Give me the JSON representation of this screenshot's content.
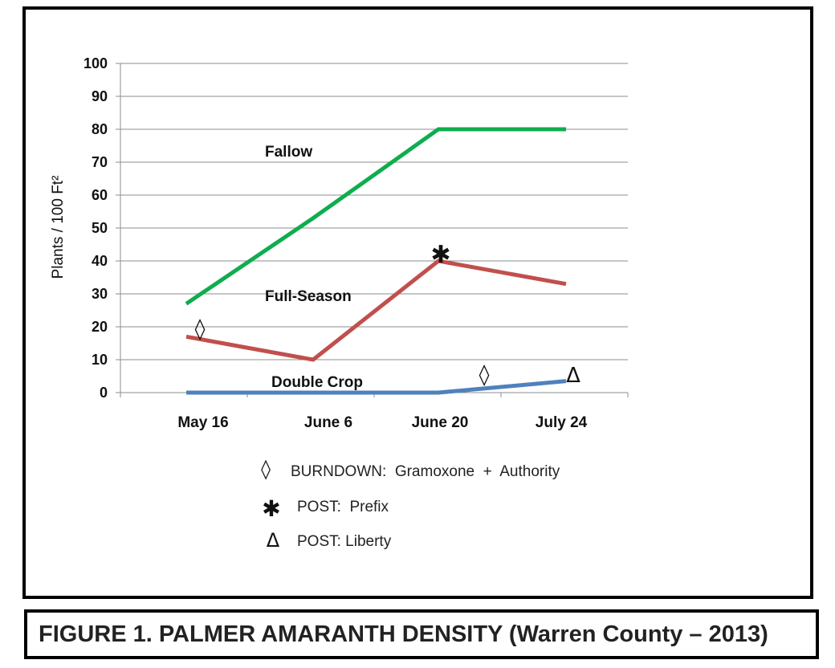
{
  "chart_data": {
    "type": "line",
    "title": "",
    "ylabel": "Plants / 100 Ft²",
    "xlabel": "",
    "ylim": [
      0,
      100
    ],
    "yticks": [
      0,
      10,
      20,
      30,
      40,
      50,
      60,
      70,
      80,
      90,
      100
    ],
    "grid": true,
    "categories": [
      "May 16",
      "June 6",
      "June 20",
      "July 24"
    ],
    "series": [
      {
        "name": "Fallow",
        "label": "Fallow",
        "color": "#0ead4e",
        "values": [
          27,
          53,
          80,
          80
        ]
      },
      {
        "name": "Full-Season",
        "label": "Full-Season",
        "color": "#c0504d",
        "values": [
          17,
          10,
          40,
          33
        ]
      },
      {
        "name": "Double Crop",
        "label": "Double Crop",
        "color": "#4f81bd",
        "values": [
          0,
          0,
          0,
          3.5
        ]
      }
    ],
    "annotations": [
      {
        "symbol": "◊",
        "series": "Full-Season",
        "category": "May 16",
        "meaning": "burndown"
      },
      {
        "symbol": "✱",
        "series": "Full-Season",
        "category": "June 20",
        "meaning": "post-prefix"
      },
      {
        "symbol": "◊",
        "series": "Double Crop",
        "category_between": [
          "June 20",
          "July 24"
        ],
        "meaning": "burndown"
      },
      {
        "symbol": "Δ",
        "series": "Double Crop",
        "category": "July 24",
        "meaning": "post-liberty"
      }
    ],
    "legend": [
      {
        "symbol": "◊",
        "text": "BURNDOWN:  Gramoxone  +  Authority"
      },
      {
        "symbol": "✱",
        "text": "POST:  Prefix"
      },
      {
        "symbol": "Δ",
        "text": "POST: Liberty"
      }
    ]
  },
  "caption": "FIGURE 1.  PALMER AMARANTH DENSITY (Warren County – 2013)"
}
